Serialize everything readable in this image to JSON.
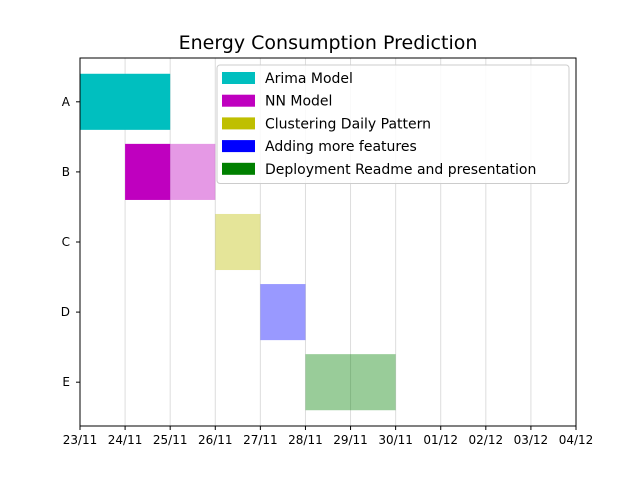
{
  "chart_data": {
    "type": "gantt",
    "title": "Energy Consumption Prediction",
    "xlabel": "",
    "ylabel": "",
    "x_tick_labels": [
      "23/11",
      "24/11",
      "25/11",
      "26/11",
      "27/11",
      "28/11",
      "29/11",
      "30/11",
      "01/12",
      "02/12",
      "03/12",
      "04/12"
    ],
    "x_range": [
      "23/11",
      "04/12"
    ],
    "categories": [
      "A",
      "B",
      "C",
      "D",
      "E"
    ],
    "grid": "vertical-x",
    "legend_position": "top-right",
    "series": [
      {
        "name": "Arima Model",
        "color": "#00bfbf",
        "bars": [
          {
            "category": "A",
            "start": "23/11",
            "end": "25/11",
            "alpha": 1.0
          }
        ]
      },
      {
        "name": "NN Model",
        "color": "#bf00bf",
        "bars": [
          {
            "category": "B",
            "start": "24/11",
            "end": "25/11",
            "alpha": 1.0
          },
          {
            "category": "B",
            "start": "25/11",
            "end": "26/11",
            "alpha": 0.4
          }
        ]
      },
      {
        "name": "Clustering Daily Pattern",
        "color": "#bfbf00",
        "bars": [
          {
            "category": "C",
            "start": "26/11",
            "end": "27/11",
            "alpha": 0.4
          }
        ]
      },
      {
        "name": "Adding more features",
        "color": "#0000ff",
        "bars": [
          {
            "category": "D",
            "start": "27/11",
            "end": "28/11",
            "alpha": 0.4
          }
        ]
      },
      {
        "name": "Deployment Readme and presentation",
        "color": "#008000",
        "bars": [
          {
            "category": "E",
            "start": "28/11",
            "end": "30/11",
            "alpha": 0.4
          }
        ]
      }
    ]
  }
}
